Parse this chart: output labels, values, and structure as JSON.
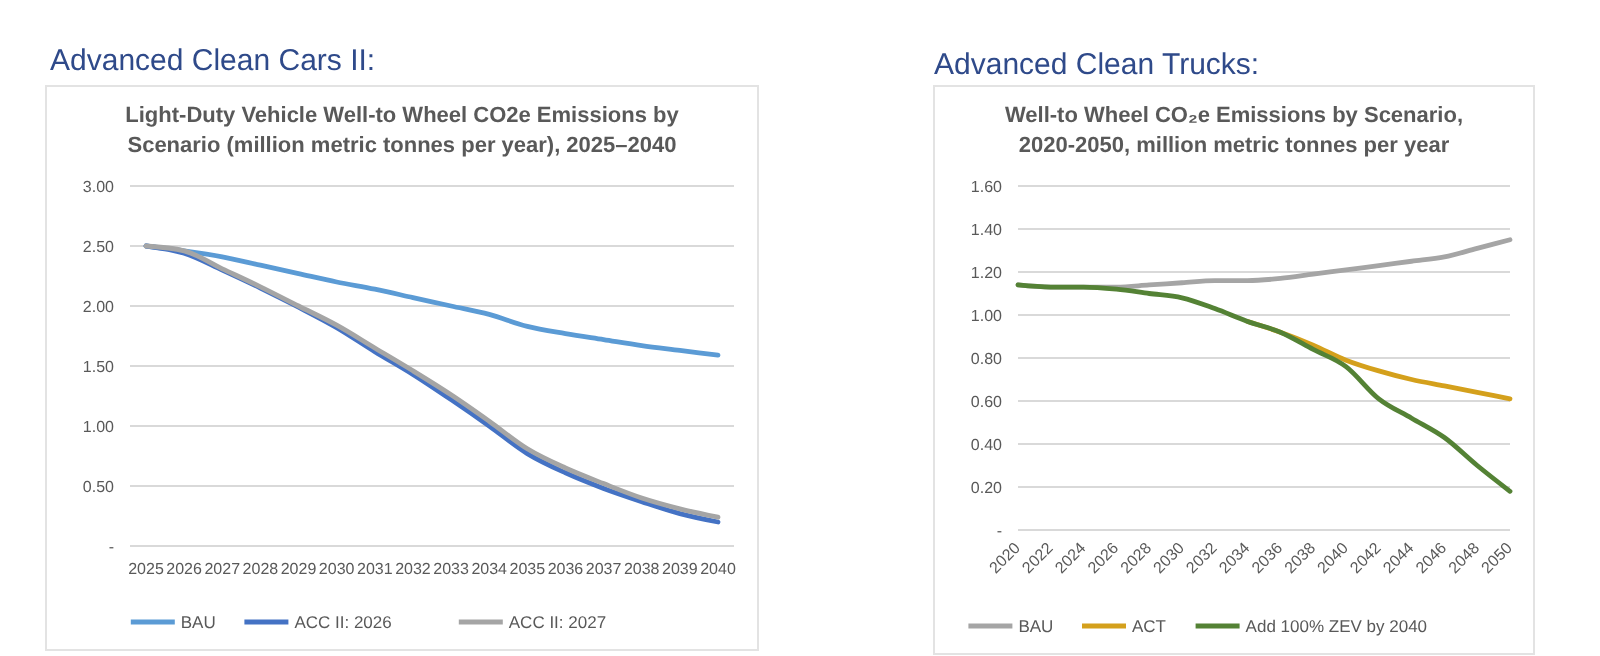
{
  "chart_data": [
    {
      "type": "line",
      "title": "Light-Duty Vehicle Well-to Wheel CO2e Emissions by Scenario (million metric tonnes per year), 2025–2040",
      "annotations": [
        "Advanced Clean Cars II:"
      ],
      "categories": [
        "2025",
        "2026",
        "2027",
        "2028",
        "2029",
        "2030",
        "2031",
        "2032",
        "2033",
        "2034",
        "2035",
        "2036",
        "2037",
        "2038",
        "2039",
        "2040"
      ],
      "series": [
        {
          "name": "BAU",
          "color": "#5b9bd5",
          "values": [
            2.5,
            2.46,
            2.41,
            2.34,
            2.27,
            2.2,
            2.14,
            2.07,
            2.0,
            1.93,
            1.83,
            1.77,
            1.72,
            1.67,
            1.63,
            1.59
          ]
        },
        {
          "name": "ACC II: 2026",
          "color": "#4472c4",
          "values": [
            2.5,
            2.44,
            2.3,
            2.15,
            1.99,
            1.82,
            1.62,
            1.43,
            1.22,
            1.0,
            0.77,
            0.61,
            0.48,
            0.37,
            0.27,
            0.2
          ]
        },
        {
          "name": "ACC II: 2027",
          "color": "#a5a5a5",
          "values": [
            2.5,
            2.46,
            2.31,
            2.16,
            2.0,
            1.84,
            1.65,
            1.46,
            1.26,
            1.04,
            0.81,
            0.65,
            0.52,
            0.4,
            0.31,
            0.24
          ]
        }
      ],
      "ylim": [
        0,
        3
      ],
      "yticks": [
        {
          "value": 0,
          "label": "-"
        },
        {
          "value": 0.5,
          "label": "0.50"
        },
        {
          "value": 1,
          "label": "1.00"
        },
        {
          "value": 1.5,
          "label": "1.50"
        },
        {
          "value": 2,
          "label": "2.00"
        },
        {
          "value": 2.5,
          "label": "2.50"
        },
        {
          "value": 3,
          "label": "3.00"
        }
      ],
      "grid": "y",
      "legend": "bottom",
      "marker": "none",
      "line_style": "solid"
    },
    {
      "type": "line",
      "title": "Well-to Wheel CO₂e Emissions by Scenario, 2020-2050, million metric tonnes per year",
      "annotations": [
        "Advanced Clean Trucks:"
      ],
      "x": [
        2020,
        2022,
        2024,
        2026,
        2028,
        2030,
        2032,
        2034,
        2036,
        2038,
        2040,
        2042,
        2044,
        2046,
        2048,
        2050
      ],
      "series": [
        {
          "name": "BAU",
          "color": "#a5a5a5",
          "values": [
            1.14,
            1.13,
            1.13,
            1.13,
            1.14,
            1.15,
            1.16,
            1.16,
            1.17,
            1.19,
            1.21,
            1.23,
            1.25,
            1.27,
            1.31,
            1.35
          ]
        },
        {
          "name": "ACT",
          "color": "#d4a01c",
          "values": [
            null,
            null,
            null,
            null,
            null,
            null,
            null,
            0.97,
            0.92,
            0.86,
            0.79,
            0.74,
            0.7,
            0.67,
            0.64,
            0.61
          ]
        },
        {
          "name": "Add 100% ZEV by 2040",
          "color": "#548235",
          "values": [
            1.14,
            1.13,
            1.13,
            1.12,
            1.1,
            1.08,
            1.03,
            0.97,
            0.92,
            0.84,
            0.76,
            0.61,
            0.52,
            0.43,
            0.3,
            0.18
          ]
        }
      ],
      "xlim": [
        2020,
        2050
      ],
      "xticks": [
        2020,
        2022,
        2024,
        2026,
        2028,
        2030,
        2032,
        2034,
        2036,
        2038,
        2040,
        2042,
        2044,
        2046,
        2048,
        2050
      ],
      "ylim": [
        0,
        1.6
      ],
      "yticks": [
        {
          "value": 0,
          "label": "-"
        },
        {
          "value": 0.2,
          "label": "0.20"
        },
        {
          "value": 0.4,
          "label": "0.40"
        },
        {
          "value": 0.6,
          "label": "0.60"
        },
        {
          "value": 0.8,
          "label": "0.80"
        },
        {
          "value": 1,
          "label": "1.00"
        },
        {
          "value": 1.2,
          "label": "1.20"
        },
        {
          "value": 1.4,
          "label": "1.40"
        },
        {
          "value": 1.6,
          "label": "1.60"
        }
      ],
      "grid": "y",
      "legend": "bottom",
      "marker": "none",
      "line_style": "solid"
    }
  ]
}
